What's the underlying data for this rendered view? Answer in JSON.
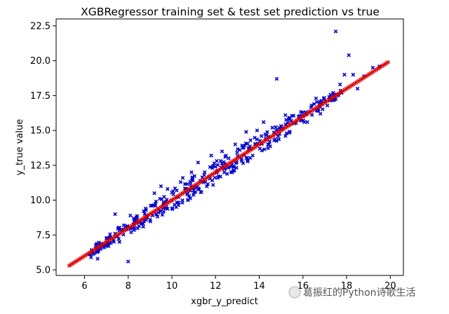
{
  "chart_data": {
    "type": "scatter",
    "title": "XGBRegressor training set & test set prediction vs true",
    "xlabel": "xgbr_y_predict",
    "ylabel": "y_true value",
    "xlim": [
      4.7,
      20.6
    ],
    "ylim": [
      4.6,
      23.0
    ],
    "x_ticks": [
      6,
      8,
      10,
      12,
      14,
      16,
      18,
      20
    ],
    "y_ticks": [
      5.0,
      7.5,
      10.0,
      12.5,
      15.0,
      17.5,
      20.0,
      22.5
    ],
    "grid": false,
    "series": [
      {
        "color": "#0000cc",
        "marker": "x",
        "points": [
          [
            6.3,
            5.9
          ],
          [
            6.6,
            5.8
          ],
          [
            6.9,
            6.6
          ],
          [
            7.1,
            6.7
          ],
          [
            7.3,
            7.1
          ],
          [
            7.5,
            7.4
          ],
          [
            7.7,
            7.9
          ],
          [
            7.8,
            8.2
          ],
          [
            7.6,
            7.0
          ],
          [
            8.0,
            5.6
          ],
          [
            8.1,
            8.9
          ],
          [
            8.2,
            8.0
          ],
          [
            7.4,
            9.0
          ],
          [
            8.6,
            8.3
          ],
          [
            8.8,
            9.4
          ],
          [
            9.0,
            8.6
          ],
          [
            9.2,
            10.5
          ],
          [
            9.3,
            9.0
          ],
          [
            9.5,
            11.0
          ],
          [
            9.6,
            9.6
          ],
          [
            9.8,
            10.8
          ],
          [
            10.0,
            10.0
          ],
          [
            10.2,
            9.5
          ],
          [
            10.4,
            11.3
          ],
          [
            10.5,
            11.6
          ],
          [
            10.7,
            10.4
          ],
          [
            10.9,
            12.0
          ],
          [
            11.0,
            10.7
          ],
          [
            11.2,
            12.7
          ],
          [
            11.3,
            11.4
          ],
          [
            11.5,
            12.0
          ],
          [
            11.6,
            11.0
          ],
          [
            11.8,
            13.2
          ],
          [
            12.0,
            12.4
          ],
          [
            12.1,
            11.6
          ],
          [
            12.3,
            13.5
          ],
          [
            12.4,
            12.0
          ],
          [
            12.6,
            13.0
          ],
          [
            12.8,
            12.4
          ],
          [
            12.9,
            14.0
          ],
          [
            13.1,
            13.6
          ],
          [
            13.2,
            12.8
          ],
          [
            13.4,
            14.9
          ],
          [
            13.6,
            14.3
          ],
          [
            13.7,
            13.2
          ],
          [
            13.9,
            15.0
          ],
          [
            14.1,
            14.6
          ],
          [
            14.2,
            15.6
          ],
          [
            14.4,
            14.0
          ],
          [
            14.6,
            15.2
          ],
          [
            14.8,
            18.7
          ],
          [
            15.0,
            15.1
          ],
          [
            15.2,
            16.1
          ],
          [
            15.4,
            15.8
          ],
          [
            15.6,
            15.5
          ],
          [
            15.8,
            16.0
          ],
          [
            16.0,
            16.3
          ],
          [
            16.2,
            15.6
          ],
          [
            16.4,
            16.8
          ],
          [
            16.6,
            17.3
          ],
          [
            16.8,
            16.2
          ],
          [
            17.0,
            17.1
          ],
          [
            17.2,
            17.4
          ],
          [
            17.5,
            22.1
          ],
          [
            17.7,
            18.3
          ],
          [
            17.9,
            19.0
          ],
          [
            18.1,
            20.4
          ],
          [
            18.3,
            19.0
          ],
          [
            18.5,
            18.0
          ],
          [
            18.8,
            18.9
          ],
          [
            19.2,
            19.5
          ],
          [
            19.5,
            19.6
          ]
        ]
      },
      {
        "color": "#dd0000",
        "marker": "x",
        "x_range": [
          5.3,
          19.9
        ],
        "note_line": "y = x"
      }
    ]
  },
  "watermark": "葛振红的Python诗歌生活"
}
